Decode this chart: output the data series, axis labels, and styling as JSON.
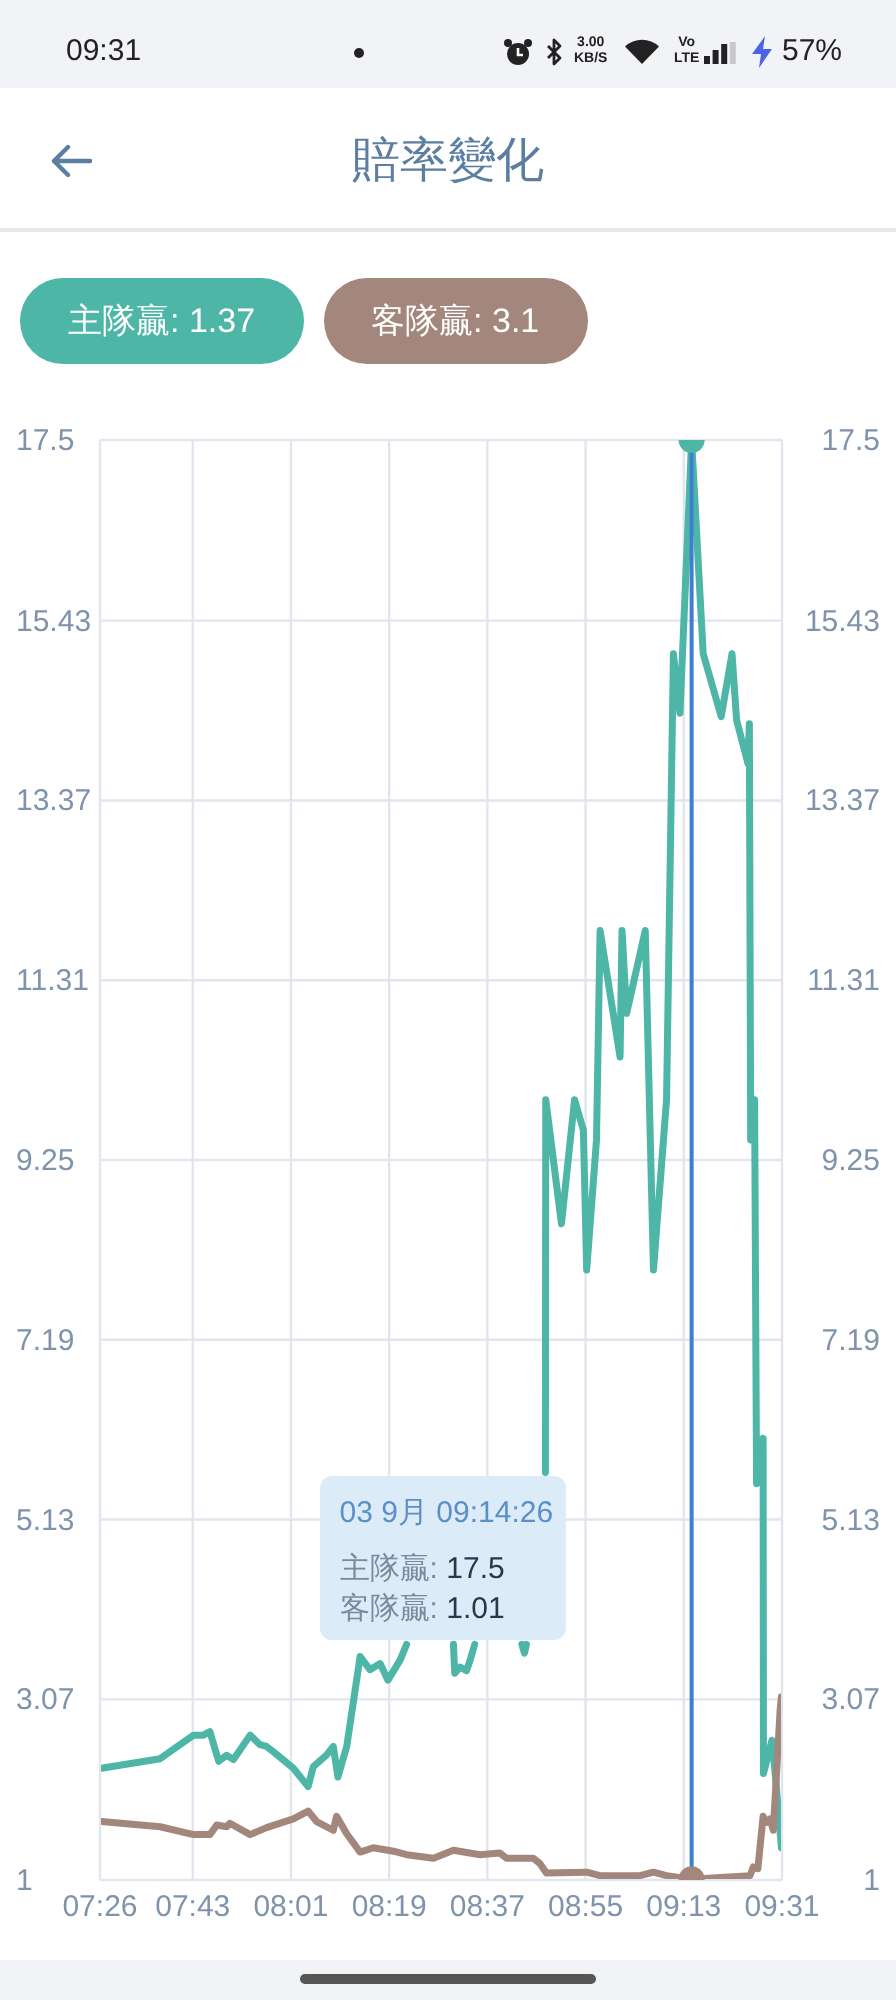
{
  "chart_data": {
    "type": "line",
    "title": "賠率變化",
    "series": [
      {
        "name": "主隊贏: 1.37",
        "color": "#4db6a6",
        "x": [
          7.438,
          7.617,
          7.719,
          7.749,
          7.769,
          7.783,
          7.796,
          7.82,
          7.841,
          7.892,
          7.922,
          7.942,
          7.963,
          8.024,
          8.069,
          8.085,
          8.125,
          8.146,
          8.16,
          8.187,
          8.228,
          8.258,
          8.289,
          8.313,
          8.35,
          8.37,
          8.45,
          8.513,
          8.517,
          8.533,
          8.553,
          8.564,
          8.578,
          8.65,
          8.722,
          8.73,
          8.736,
          8.76,
          8.794,
          8.795,
          8.843,
          8.883,
          8.91,
          8.92,
          8.95,
          8.961,
          9.022,
          9.028,
          9.042,
          9.099,
          9.124,
          9.164,
          9.185,
          9.205,
          9.2406,
          9.276,
          9.331,
          9.364,
          9.378,
          9.413,
          9.417,
          9.421,
          9.433,
          9.439,
          9.459,
          9.46,
          9.486,
          9.494,
          9.515
        ],
        "values": [
          2.28,
          2.39,
          2.66,
          2.66,
          2.7,
          2.52,
          2.36,
          2.43,
          2.38,
          2.66,
          2.55,
          2.53,
          2.47,
          2.28,
          2.07,
          2.3,
          2.43,
          2.53,
          2.18,
          2.53,
          3.56,
          3.41,
          3.48,
          3.29,
          3.52,
          3.7,
          null,
          3.7,
          3.37,
          3.44,
          3.4,
          3.52,
          3.7,
          null,
          3.7,
          3.6,
          3.7,
          null,
          5.67,
          9.94,
          8.52,
          9.94,
          9.59,
          7.99,
          9.48,
          11.88,
          10.43,
          11.88,
          10.93,
          11.88,
          7.99,
          9.94,
          15.05,
          14.37,
          17.5,
          15.05,
          14.33,
          15.05,
          14.29,
          13.79,
          14.25,
          9.48,
          9.94,
          5.54,
          6.06,
          2.22,
          2.6,
          2.3,
          1.37
        ]
      },
      {
        "name": "客隊贏: 3.1",
        "color": "#a3877c",
        "x": [
          7.438,
          7.617,
          7.719,
          7.769,
          7.79,
          7.82,
          7.83,
          7.892,
          7.942,
          8.024,
          8.069,
          8.095,
          8.146,
          8.156,
          8.187,
          8.228,
          8.268,
          8.33,
          8.37,
          8.452,
          8.513,
          8.594,
          8.655,
          8.675,
          8.757,
          8.777,
          8.797,
          8.92,
          8.961,
          9.083,
          9.124,
          9.164,
          9.2406,
          9.419,
          9.429,
          9.443,
          9.459,
          9.469,
          9.48,
          9.49,
          9.5,
          9.511,
          9.515
        ],
        "values": [
          1.67,
          1.61,
          1.52,
          1.52,
          1.63,
          1.61,
          1.65,
          1.52,
          1.6,
          1.7,
          1.79,
          1.67,
          1.57,
          1.73,
          1.53,
          1.32,
          1.37,
          1.33,
          1.29,
          1.25,
          1.34,
          1.29,
          1.31,
          1.25,
          1.25,
          1.19,
          1.08,
          1.09,
          1.05,
          1.05,
          1.09,
          1.05,
          1.01,
          1.05,
          1.15,
          1.13,
          1.73,
          1.66,
          1.7,
          1.57,
          2.22,
          2.95,
          3.1
        ]
      },
      {
        "type": "scatter",
        "x": [
          9.2406,
          9.2406
        ],
        "values": [
          17.5,
          1.01
        ],
        "colors": [
          "#4db6a6",
          "#a3877c"
        ]
      }
    ],
    "xlim": [
      7.4333,
      9.5167
    ],
    "xticks": [
      {
        "value": 7.4333,
        "label": "07:26"
      },
      {
        "value": 7.7167,
        "label": "07:43"
      },
      {
        "value": 8.0167,
        "label": "08:01"
      },
      {
        "value": 8.3167,
        "label": "08:19"
      },
      {
        "value": 8.6167,
        "label": "08:37"
      },
      {
        "value": 8.9167,
        "label": "08:55"
      },
      {
        "value": 9.2167,
        "label": "09:13"
      },
      {
        "value": 9.5167,
        "label": "09:31"
      }
    ],
    "ylim": [
      1,
      17.5
    ],
    "yticks": [
      1,
      3.07,
      5.13,
      7.19,
      9.25,
      11.31,
      13.37,
      15.43,
      17.5
    ],
    "y2lim": [
      1,
      17.5
    ],
    "y2ticks": [
      1,
      3.07,
      5.13,
      7.19,
      9.25,
      11.31,
      13.37,
      15.43,
      17.5
    ],
    "grid": true,
    "legend": "top left",
    "ref_lines": [
      {
        "axis": "x",
        "value": 9.2406,
        "color": "#3f7fd0"
      }
    ],
    "annotations": [
      "09:31",
      "3.00 KB/S",
      "Vo LTE",
      "57%",
      "03 9月 09:14:26",
      "主隊贏: 17.5",
      "客隊贏: 1.01"
    ]
  }
}
